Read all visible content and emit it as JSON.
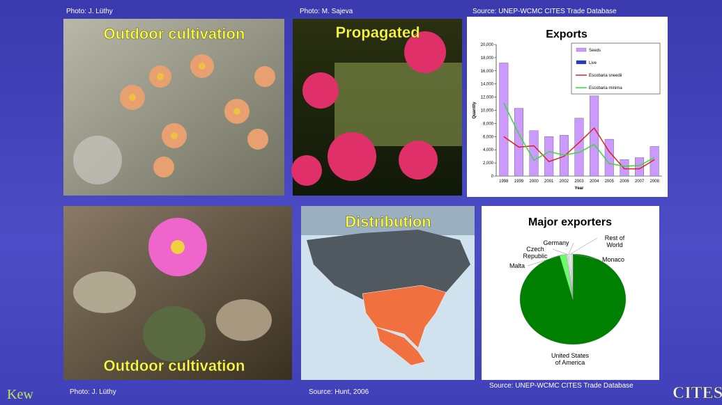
{
  "captions": {
    "top": [
      "Photo: J. Lüthy",
      "Photo: M. Sajeva",
      "Source: UNEP-WCMC CITES Trade Database"
    ],
    "bottom": [
      "Photo: J. Lüthy",
      "Source: Hunt, 2006",
      "Source: UNEP-WCMC CITES Trade Database"
    ]
  },
  "panels": [
    {
      "title": "Outdoor cultivation"
    },
    {
      "title": "Propagated"
    },
    {
      "title": "Outdoor cultivation"
    },
    {
      "title": "Distribution"
    }
  ],
  "logos": [
    "Kew",
    "CITES"
  ],
  "chart_data": [
    {
      "type": "bar",
      "title": "Exports",
      "xlabel": "Year",
      "ylabel": "Quantity",
      "categories": [
        "1998",
        "1999",
        "2000",
        "2001",
        "2002",
        "2003",
        "2004",
        "2005",
        "2006",
        "2007",
        "2008"
      ],
      "series": [
        {
          "name": "Seeds",
          "color": "#cc99ff",
          "type": "bar",
          "values": [
            17200,
            10300,
            6900,
            6000,
            6200,
            8800,
            12200,
            5600,
            2500,
            2800,
            4500
          ]
        },
        {
          "name": "Live",
          "color": "#1f3fbf",
          "type": "bar",
          "values": [
            0,
            0,
            0,
            0,
            0,
            0,
            0,
            0,
            0,
            0,
            0
          ]
        },
        {
          "name": "Escobaria sneedii",
          "color": "#e02020",
          "type": "line",
          "values": [
            6000,
            4400,
            4600,
            2200,
            3000,
            5100,
            7300,
            3700,
            1100,
            1100,
            2500
          ]
        },
        {
          "name": "Escobaria minima",
          "color": "#33dd33",
          "type": "line",
          "values": [
            11100,
            6400,
            2400,
            3700,
            3200,
            3600,
            4800,
            1900,
            1500,
            1600,
            2800
          ]
        }
      ],
      "ylim": [
        0,
        20000
      ],
      "yticks": [
        0,
        {
          "value": 2000,
          "label": "2,000"
        },
        {
          "value": 4000,
          "label": "4,000"
        },
        {
          "value": 6000,
          "label": "6,000"
        },
        {
          "value": 8000,
          "label": "8,000"
        },
        {
          "value": 10000,
          "label": "10,000"
        },
        {
          "value": 12000,
          "label": "12,000"
        },
        {
          "value": 14000,
          "label": "14,000"
        },
        {
          "value": 16000,
          "label": "16,000"
        },
        {
          "value": 18000,
          "label": "18,000"
        },
        {
          "value": 20000,
          "label": "20,000"
        }
      ],
      "legend": "upper right"
    },
    {
      "type": "pie",
      "title": "Major exporters",
      "categories": [
        "United States of America",
        "Malta",
        "Czech Republic",
        "Germany",
        "Rest of World",
        "Monaco"
      ],
      "values": [
        96,
        2,
        0.5,
        0.5,
        0.5,
        0.5
      ],
      "colors": [
        "#008000",
        "#66ff66",
        "#dddddd",
        "#f4f4f4",
        "#ffffff",
        "#e8e8e8"
      ]
    }
  ]
}
